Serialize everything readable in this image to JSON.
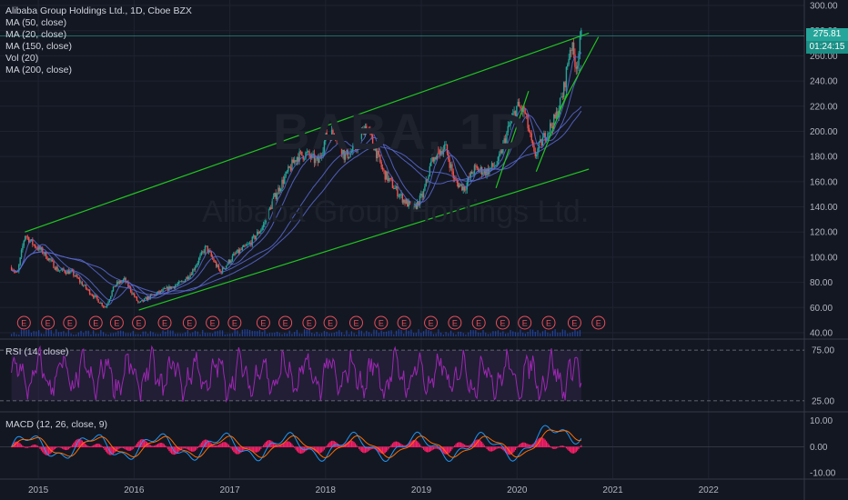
{
  "header": {
    "symbol_line": "Alibaba Group Holdings Ltd., 1D, Cboe BZX",
    "indicators": [
      "MA (50, close)",
      "MA (20, close)",
      "MA (150, close)",
      "Vol (20)",
      "MA (200, close)"
    ]
  },
  "watermark": {
    "ticker": "BABA, 1D",
    "name": "Alibaba Group Holdings Ltd."
  },
  "rsi_label": "RSI (14, close)",
  "macd_label": "MACD (12, 26, close, 9)",
  "last_price": "275.81",
  "countdown": "01:24:15",
  "earnings_marker": "E",
  "colors": {
    "background": "#131722",
    "channel": "#21c421",
    "ma": "#5b6bd1",
    "rsi": "#9c27b0",
    "macd": "#2196f3",
    "signal": "#ff6d00",
    "histogram": "#ff1f6a",
    "price_tag": "#26a69a"
  },
  "chart_data": [
    {
      "type": "candlestick",
      "title": "Alibaba Group Holdings Ltd., 1D, Cboe BZX",
      "y_ticks": [
        40,
        60,
        80,
        100,
        120,
        140,
        160,
        180,
        200,
        220,
        240,
        260,
        280,
        300
      ],
      "y_tick_labels": [
        "40.00",
        "60.00",
        "80.00",
        "100.00",
        "120.00",
        "140.00",
        "160.00",
        "180.00",
        "200.00",
        "220.00",
        "240.00",
        "260.00",
        "280.00",
        "300.00"
      ],
      "x_ticks": [
        "2015",
        "2016",
        "2017",
        "2018",
        "2019",
        "2020",
        "2021",
        "2022"
      ],
      "ylim": [
        40,
        300
      ],
      "xlim": [
        2014.6,
        2023.0
      ],
      "price_path": [
        {
          "x": 2014.72,
          "y": 92
        },
        {
          "x": 2014.78,
          "y": 86
        },
        {
          "x": 2014.86,
          "y": 118
        },
        {
          "x": 2014.95,
          "y": 110
        },
        {
          "x": 2015.05,
          "y": 104
        },
        {
          "x": 2015.2,
          "y": 90
        },
        {
          "x": 2015.35,
          "y": 88
        },
        {
          "x": 2015.5,
          "y": 75
        },
        {
          "x": 2015.62,
          "y": 66
        },
        {
          "x": 2015.7,
          "y": 60
        },
        {
          "x": 2015.8,
          "y": 78
        },
        {
          "x": 2015.9,
          "y": 82
        },
        {
          "x": 2016.05,
          "y": 63
        },
        {
          "x": 2016.15,
          "y": 68
        },
        {
          "x": 2016.35,
          "y": 75
        },
        {
          "x": 2016.5,
          "y": 80
        },
        {
          "x": 2016.6,
          "y": 88
        },
        {
          "x": 2016.75,
          "y": 108
        },
        {
          "x": 2016.9,
          "y": 88
        },
        {
          "x": 2017.05,
          "y": 102
        },
        {
          "x": 2017.2,
          "y": 110
        },
        {
          "x": 2017.35,
          "y": 125
        },
        {
          "x": 2017.45,
          "y": 145
        },
        {
          "x": 2017.55,
          "y": 160
        },
        {
          "x": 2017.7,
          "y": 180
        },
        {
          "x": 2017.8,
          "y": 182
        },
        {
          "x": 2017.92,
          "y": 175
        },
        {
          "x": 2018.0,
          "y": 195
        },
        {
          "x": 2018.1,
          "y": 200
        },
        {
          "x": 2018.2,
          "y": 180
        },
        {
          "x": 2018.3,
          "y": 185
        },
        {
          "x": 2018.42,
          "y": 205
        },
        {
          "x": 2018.5,
          "y": 190
        },
        {
          "x": 2018.6,
          "y": 168
        },
        {
          "x": 2018.72,
          "y": 155
        },
        {
          "x": 2018.82,
          "y": 145
        },
        {
          "x": 2018.92,
          "y": 138
        },
        {
          "x": 2019.02,
          "y": 150
        },
        {
          "x": 2019.12,
          "y": 180
        },
        {
          "x": 2019.25,
          "y": 188
        },
        {
          "x": 2019.35,
          "y": 160
        },
        {
          "x": 2019.45,
          "y": 155
        },
        {
          "x": 2019.55,
          "y": 170
        },
        {
          "x": 2019.68,
          "y": 168
        },
        {
          "x": 2019.8,
          "y": 175
        },
        {
          "x": 2019.9,
          "y": 200
        },
        {
          "x": 2020.0,
          "y": 220
        },
        {
          "x": 2020.08,
          "y": 215
        },
        {
          "x": 2020.18,
          "y": 180
        },
        {
          "x": 2020.3,
          "y": 198
        },
        {
          "x": 2020.4,
          "y": 210
        },
        {
          "x": 2020.48,
          "y": 230
        },
        {
          "x": 2020.56,
          "y": 270
        },
        {
          "x": 2020.62,
          "y": 252
        },
        {
          "x": 2020.67,
          "y": 275
        }
      ],
      "channel_upper": [
        {
          "x": 2014.86,
          "y": 120
        },
        {
          "x": 2020.75,
          "y": 278
        }
      ],
      "channel_lower": [
        {
          "x": 2016.05,
          "y": 58
        },
        {
          "x": 2020.75,
          "y": 170
        }
      ],
      "horizontal_level": 275.81,
      "earnings_x": [
        2014.85,
        2015.1,
        2015.33,
        2015.6,
        2015.82,
        2016.05,
        2016.32,
        2016.58,
        2016.82,
        2017.05,
        2017.35,
        2017.58,
        2017.83,
        2018.05,
        2018.32,
        2018.58,
        2018.82,
        2019.1,
        2019.35,
        2019.6,
        2019.85,
        2020.08,
        2020.33,
        2020.6,
        2020.85
      ]
    },
    {
      "type": "line",
      "title": "RSI (14, close)",
      "y_ticks": [
        25,
        75
      ],
      "y_tick_labels": [
        "25.00",
        "75.00"
      ],
      "ylim": [
        15,
        85
      ]
    },
    {
      "type": "line",
      "title": "MACD (12, 26, close, 9)",
      "y_ticks": [
        -10,
        0,
        10
      ],
      "y_tick_labels": [
        "-10.00",
        "0.00",
        "10.00"
      ],
      "ylim": [
        -12,
        13
      ]
    }
  ]
}
